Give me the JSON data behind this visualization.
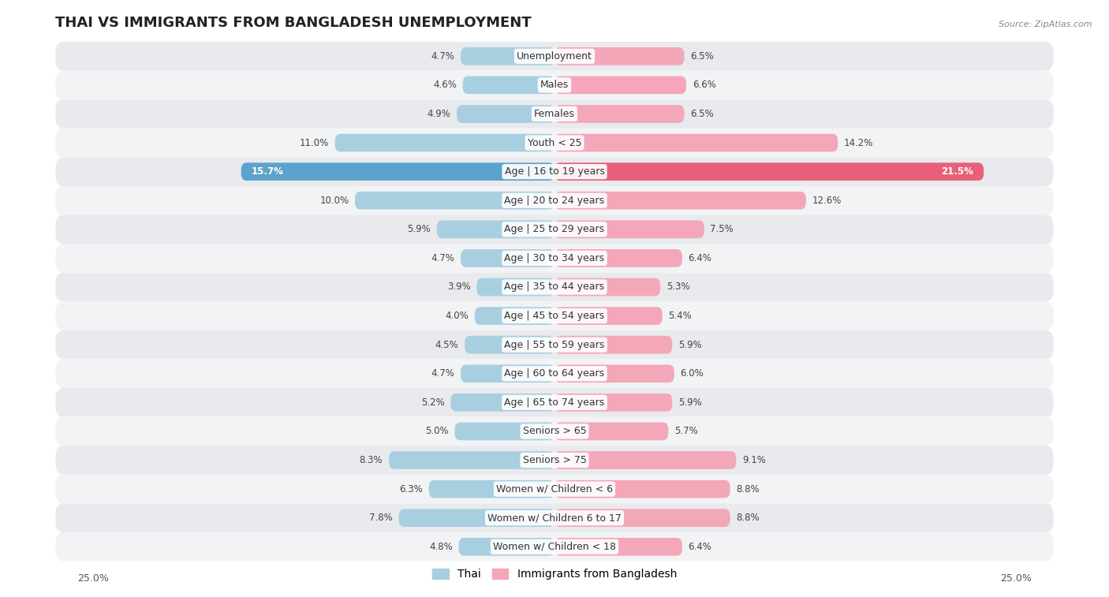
{
  "title": "THAI VS IMMIGRANTS FROM BANGLADESH UNEMPLOYMENT",
  "source": "Source: ZipAtlas.com",
  "categories": [
    "Unemployment",
    "Males",
    "Females",
    "Youth < 25",
    "Age | 16 to 19 years",
    "Age | 20 to 24 years",
    "Age | 25 to 29 years",
    "Age | 30 to 34 years",
    "Age | 35 to 44 years",
    "Age | 45 to 54 years",
    "Age | 55 to 59 years",
    "Age | 60 to 64 years",
    "Age | 65 to 74 years",
    "Seniors > 65",
    "Seniors > 75",
    "Women w/ Children < 6",
    "Women w/ Children 6 to 17",
    "Women w/ Children < 18"
  ],
  "thai_values": [
    4.7,
    4.6,
    4.9,
    11.0,
    15.7,
    10.0,
    5.9,
    4.7,
    3.9,
    4.0,
    4.5,
    4.7,
    5.2,
    5.0,
    8.3,
    6.3,
    7.8,
    4.8
  ],
  "bangladesh_values": [
    6.5,
    6.6,
    6.5,
    14.2,
    21.5,
    12.6,
    7.5,
    6.4,
    5.3,
    5.4,
    5.9,
    6.0,
    5.9,
    5.7,
    9.1,
    8.8,
    8.8,
    6.4
  ],
  "thai_color": "#a8cfe0",
  "bangladesh_color": "#f4a7b9",
  "highlight_thai_color": "#5ba3cc",
  "highlight_bangladesh_color": "#e8607a",
  "axis_limit": 25.0,
  "bar_height": 0.62,
  "row_even_color": "#e8eaed",
  "row_odd_color": "#f2f3f5",
  "highlight_row": 4,
  "label_fontsize": 9.0,
  "value_fontsize": 8.5,
  "title_fontsize": 13,
  "legend_fontsize": 10
}
